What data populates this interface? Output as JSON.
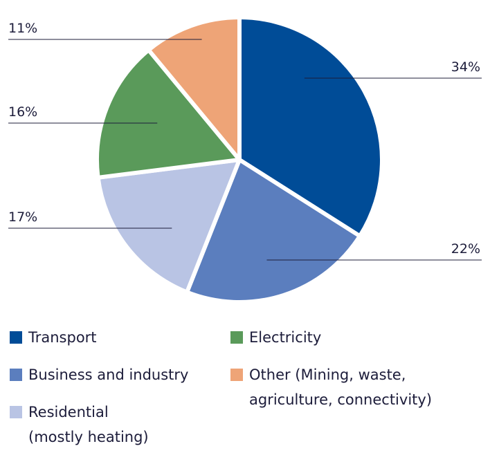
{
  "chart_data": {
    "type": "pie",
    "start_angle_deg": 0,
    "direction": "clockwise",
    "slices": [
      {
        "name": "Transport",
        "value": 34,
        "label": "34%",
        "color": "#004c97"
      },
      {
        "name": "Business and industry",
        "value": 22,
        "label": "22%",
        "color": "#5b7ebe"
      },
      {
        "name": "Residential (mostly heating)",
        "value": 17,
        "label": "17%",
        "color": "#b9c4e4"
      },
      {
        "name": "Electricity",
        "value": 16,
        "label": "16%",
        "color": "#5a9a5a"
      },
      {
        "name": "Other (Mining, waste, agriculture, connectivity)",
        "value": 11,
        "label": "11%",
        "color": "#eea477"
      }
    ]
  },
  "legend": {
    "transport": {
      "line1": "Transport",
      "color": "#004c97"
    },
    "business": {
      "line1": "Business and industry",
      "color": "#5b7ebe"
    },
    "residential": {
      "line1": "Residential",
      "line2": "(mostly heating)",
      "color": "#b9c4e4"
    },
    "electricity": {
      "line1": "Electricity",
      "color": "#5a9a5a"
    },
    "other": {
      "line1": "Other (Mining, waste,",
      "line2": "agriculture, connectivity)",
      "color": "#eea477"
    }
  }
}
